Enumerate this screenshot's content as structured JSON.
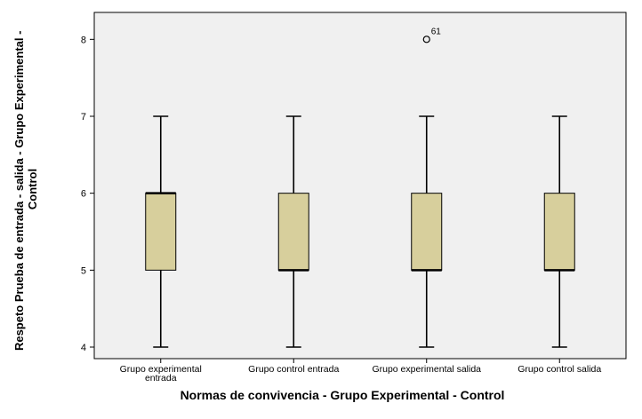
{
  "chart_data": {
    "type": "boxplot",
    "title": "",
    "xlabel": "Normas de convivencia - Grupo Experimental - Control",
    "ylabel_lines": [
      "Respeto Prueba de entrada - salida - Grupo Experimental -",
      "Control"
    ],
    "ylim": [
      3.85,
      8.35
    ],
    "yticks": [
      4,
      5,
      6,
      7,
      8
    ],
    "ytick_labels": [
      "4",
      "5",
      "6",
      "7",
      "8"
    ],
    "grid": false,
    "categories": [
      [
        "Grupo experimental",
        "entrada"
      ],
      [
        "Grupo control entrada"
      ],
      [
        "Grupo experimental salida"
      ],
      [
        "Grupo control salida"
      ]
    ],
    "boxes": [
      {
        "min": 4,
        "q1": 5,
        "median": 6,
        "q3": 6,
        "max": 7
      },
      {
        "min": 4,
        "q1": 5,
        "median": 5,
        "q3": 6,
        "max": 7
      },
      {
        "min": 4,
        "q1": 5,
        "median": 5,
        "q3": 6,
        "max": 7
      },
      {
        "min": 4,
        "q1": 5,
        "median": 5,
        "q3": 6,
        "max": 7
      }
    ],
    "outliers": [
      {
        "category_index": 2,
        "value": 8,
        "label": "61"
      }
    ],
    "colors": {
      "plot_background": "#f0f0f0",
      "box_fill": "#d7cf9c",
      "stroke": "#000000"
    }
  }
}
